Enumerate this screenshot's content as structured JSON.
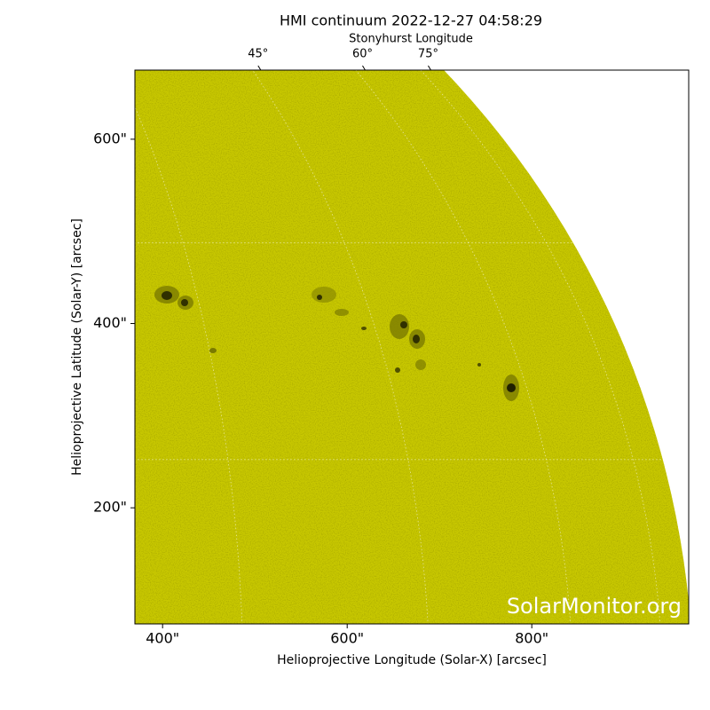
{
  "chart_data": {
    "type": "image",
    "title": "HMI continuum 2022-12-27 04:58:29",
    "top_axis_label": "Stonyhurst Longitude",
    "xlabel": "Helioprojective Longitude (Solar-X) [arcsec]",
    "ylabel": "Helioprojective Latitude (Solar-Y) [arcsec]",
    "watermark": "SolarMonitor.org",
    "xlim": [
      370,
      970
    ],
    "ylim": [
      74,
      675
    ],
    "xticks": [
      {
        "value": 400,
        "label": "400\""
      },
      {
        "value": 600,
        "label": "600\""
      },
      {
        "value": 800,
        "label": "800\""
      }
    ],
    "yticks": [
      {
        "value": 200,
        "label": "200\""
      },
      {
        "value": 400,
        "label": "400\""
      },
      {
        "value": 600,
        "label": "600\""
      }
    ],
    "top_ticks": [
      {
        "value": 45,
        "label": "45°"
      },
      {
        "value": 60,
        "label": "60°"
      },
      {
        "value": 75,
        "label": "75°"
      }
    ],
    "color": "#c8c800"
  }
}
